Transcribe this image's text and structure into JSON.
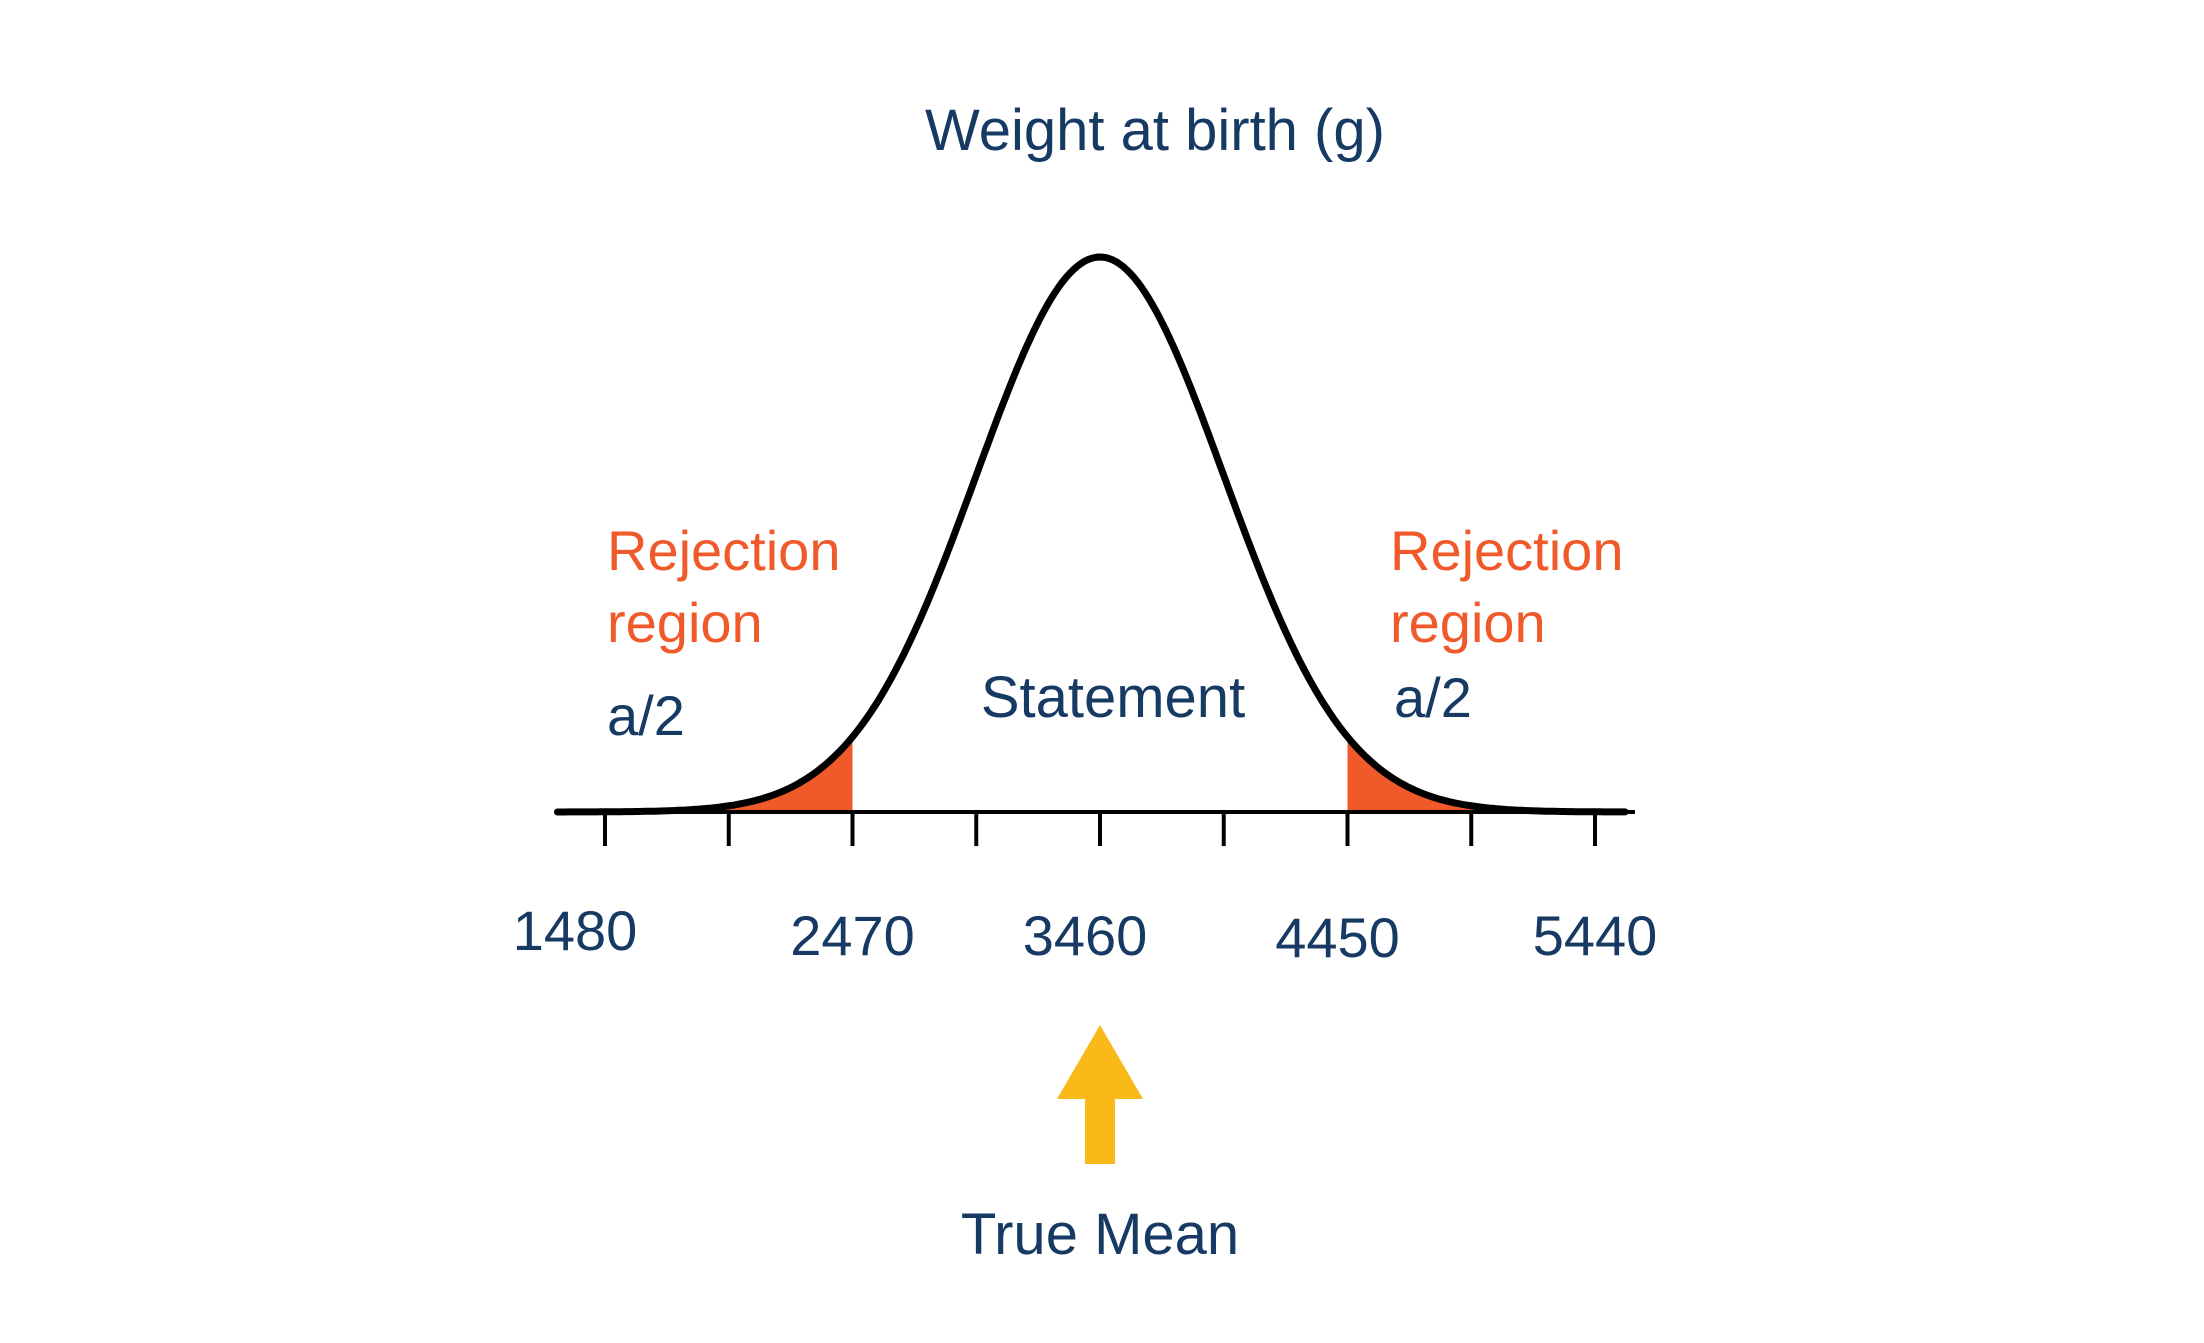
{
  "title": "Weight at birth (g)",
  "colors": {
    "text": "#163a63",
    "accent": "#f05a2a",
    "curve": "#000000",
    "arrow": "#f8b919",
    "background": "#ffffff"
  },
  "chart_data": {
    "type": "area",
    "title": "Weight at birth (g)",
    "xlabel": "",
    "ylabel": "",
    "x_tick_labels": [
      "1480",
      "2470",
      "3460",
      "4450",
      "5440"
    ],
    "x_ticks_all": [
      1480,
      1975,
      2470,
      2965,
      3460,
      3955,
      4450,
      4945,
      5440
    ],
    "xlim": [
      1290,
      5560
    ],
    "mean": 3460,
    "sd": 495,
    "lower_critical": 2470,
    "upper_critical": 4450,
    "shaded_regions": [
      [
        1290,
        2470
      ],
      [
        4450,
        5560
      ]
    ],
    "grid": false
  },
  "labels": {
    "left_region_line1": "Rejection",
    "left_region_line2": "region",
    "left_alpha": "a/2",
    "right_region_line1": "Rejection",
    "right_region_line2": "region",
    "right_alpha": "a/2",
    "center": "Statement",
    "pointer": "True Mean"
  },
  "icons": {
    "pointer": "arrow-up-icon"
  }
}
